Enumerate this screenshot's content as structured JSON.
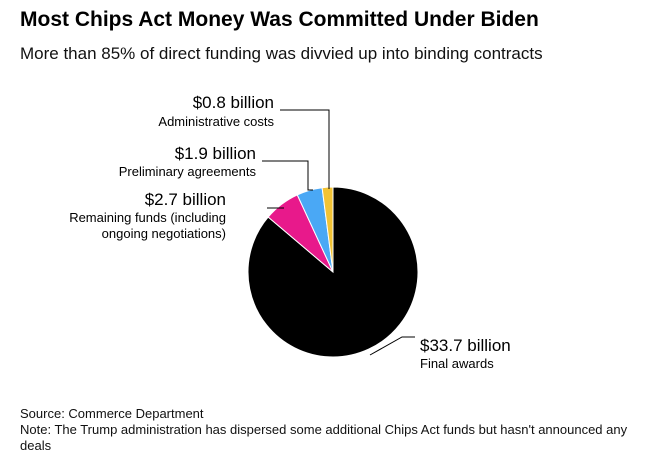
{
  "header": {
    "title": "Most Chips Act Money Was Committed Under Biden",
    "subtitle": "More than 85% of direct funding was divvied up into binding contracts"
  },
  "footer": {
    "source": "Source: Commerce Department",
    "note": "Note: The Trump administration has dispersed some additional Chips Act funds but hasn't announced any deals"
  },
  "chart_data": {
    "type": "pie",
    "unit": "billion USD",
    "slices": [
      {
        "value_label": "$33.7 billion",
        "label": "Final awards",
        "value": 33.7,
        "color": "#000000"
      },
      {
        "value_label": "$2.7 billion",
        "label": "Remaining funds (including ongoing negotiations)",
        "label_lines": [
          "Remaining funds (including",
          "ongoing negotiations)"
        ],
        "value": 2.7,
        "color": "#e8198b"
      },
      {
        "value_label": "$1.9 billion",
        "label": "Preliminary agreements",
        "value": 1.9,
        "color": "#4aa8f5"
      },
      {
        "value_label": "$0.8 billion",
        "label": "Administrative costs",
        "value": 0.8,
        "color": "#f2c335"
      }
    ]
  }
}
